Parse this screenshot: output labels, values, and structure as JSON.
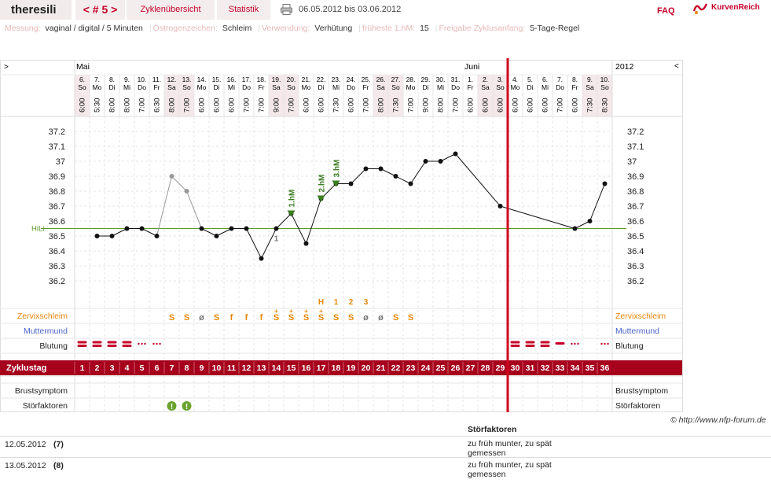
{
  "header": {
    "username": "theresili",
    "cycle_label": "< # 5 >",
    "overview_link": "Zyklenübersicht",
    "stats_link": "Statistik",
    "date_range": "06.05.2012 bis 03.06.2012",
    "faq_link": "FAQ",
    "logo_text": "KurvenReich"
  },
  "settings": [
    {
      "label": "Messung:",
      "value": "vaginal / digital / 5 Minuten"
    },
    {
      "label": "Östrogenzeichen:",
      "value": "Schleim"
    },
    {
      "label": "Verwendung:",
      "value": "Verhütung"
    },
    {
      "label": "früheste 1.hM:",
      "value": "15"
    },
    {
      "label": "Freigabe Zyklusanfang:",
      "value": "5-Tage-Regel"
    }
  ],
  "colors": {
    "accent": "#c4002a",
    "cycle_bar": "#a6001d",
    "hili": "#5a9a2a",
    "mucus": "#e8860a",
    "cervix_label": "#4a63c8",
    "weekend": "#f4e8ea",
    "marker": "#3c7d22"
  },
  "chart_data": {
    "type": "line",
    "months": [
      {
        "name": "Mai",
        "start_day": 1
      },
      {
        "name": "Juni",
        "start_day": 27
      }
    ],
    "year": "2012",
    "nav_left": ">",
    "nav_right": "<",
    "days": [
      {
        "d": "6.",
        "wd": "So",
        "t": "6:00"
      },
      {
        "d": "7.",
        "wd": "Mo",
        "t": "5:30"
      },
      {
        "d": "8.",
        "wd": "Di",
        "t": "8:00"
      },
      {
        "d": "9.",
        "wd": "Mi",
        "t": "8:00"
      },
      {
        "d": "10.",
        "wd": "Do",
        "t": "7:00"
      },
      {
        "d": "11.",
        "wd": "Fr",
        "t": "6:30"
      },
      {
        "d": "12.",
        "wd": "Sa",
        "t": "8:00"
      },
      {
        "d": "13.",
        "wd": "So",
        "t": "7:00"
      },
      {
        "d": "14.",
        "wd": "Mo",
        "t": "6:00"
      },
      {
        "d": "15.",
        "wd": "Di",
        "t": "6:00"
      },
      {
        "d": "16.",
        "wd": "Mi",
        "t": "6:00"
      },
      {
        "d": "17.",
        "wd": "Do",
        "t": "7:00"
      },
      {
        "d": "18.",
        "wd": "Fr",
        "t": "7:00"
      },
      {
        "d": "19.",
        "wd": "Sa",
        "t": "9:00"
      },
      {
        "d": "20.",
        "wd": "So",
        "t": "7:00"
      },
      {
        "d": "21.",
        "wd": "Mo",
        "t": "6:00"
      },
      {
        "d": "22.",
        "wd": "Di",
        "t": "6:00"
      },
      {
        "d": "23.",
        "wd": "Mi",
        "t": "7:30"
      },
      {
        "d": "24.",
        "wd": "Do",
        "t": "6:00"
      },
      {
        "d": "25.",
        "wd": "Fr",
        "t": "7:00"
      },
      {
        "d": "26.",
        "wd": "Sa",
        "t": "8:00"
      },
      {
        "d": "27.",
        "wd": "So",
        "t": "7:30"
      },
      {
        "d": "28.",
        "wd": "Mo",
        "t": "7:00"
      },
      {
        "d": "29.",
        "wd": "Di",
        "t": "9:00"
      },
      {
        "d": "30.",
        "wd": "Mi",
        "t": "8:00"
      },
      {
        "d": "31.",
        "wd": "Do",
        "t": "7:00"
      },
      {
        "d": "1.",
        "wd": "Fr",
        "t": "6:00"
      },
      {
        "d": "2.",
        "wd": "Sa",
        "t": "6:00"
      },
      {
        "d": "3.",
        "wd": "So",
        "t": "6:00"
      },
      {
        "d": "4.",
        "wd": "Mo",
        "t": "6:00"
      },
      {
        "d": "5.",
        "wd": "Di",
        "t": "6:00"
      },
      {
        "d": "6.",
        "wd": "Mi",
        "t": "6:00"
      },
      {
        "d": "7.",
        "wd": "Do",
        "t": "7:00"
      },
      {
        "d": "8.",
        "wd": "Fr",
        "t": "6:00"
      },
      {
        "d": "9.",
        "wd": "Sa",
        "t": "7:30"
      },
      {
        "d": "10.",
        "wd": "So",
        "t": "8:30"
      }
    ],
    "temperatures": [
      null,
      36.5,
      36.5,
      36.55,
      36.55,
      36.5,
      36.9,
      36.8,
      36.55,
      36.5,
      36.55,
      36.55,
      36.35,
      36.55,
      36.65,
      36.45,
      36.75,
      36.85,
      36.85,
      36.95,
      36.95,
      36.9,
      36.85,
      37.0,
      37.0,
      37.05,
      null,
      null,
      36.7,
      null,
      null,
      null,
      null,
      36.55,
      36.6,
      36.85
    ],
    "disturbed_days": [
      7,
      8
    ],
    "ylim": [
      36.1,
      37.3
    ],
    "y_ticks": [
      36.2,
      36.3,
      36.4,
      36.5,
      36.6,
      36.7,
      36.8,
      36.9,
      37.0,
      37.1,
      37.2
    ],
    "y_tick_labels": [
      "36.2",
      "36.3",
      "36.4",
      "36.5",
      "36.6",
      "36.7",
      "36.8",
      "36.9",
      "37",
      "37.1",
      "37.2"
    ],
    "hili": {
      "label": "HiLi",
      "value": 36.55
    },
    "cycle_end_day": 29,
    "temp_markers": [
      {
        "day": 15,
        "label": "1.hM"
      },
      {
        "day": 17,
        "label": "2.hM"
      },
      {
        "day": 18,
        "label": "3.hM"
      }
    ],
    "under_label": {
      "day": 14,
      "text": "1"
    },
    "mucus_peak_labels": [
      {
        "day": 17,
        "text": "H"
      },
      {
        "day": 18,
        "text": "1"
      },
      {
        "day": 19,
        "text": "2"
      },
      {
        "day": 20,
        "text": "3"
      }
    ],
    "mucus": [
      {
        "day": 7,
        "sym": "S"
      },
      {
        "day": 8,
        "sym": "S"
      },
      {
        "day": 9,
        "sym": "ø"
      },
      {
        "day": 10,
        "sym": "S"
      },
      {
        "day": 11,
        "sym": "f"
      },
      {
        "day": 12,
        "sym": "f"
      },
      {
        "day": 13,
        "sym": "f"
      },
      {
        "day": 14,
        "sym": "S+"
      },
      {
        "day": 15,
        "sym": "S+"
      },
      {
        "day": 16,
        "sym": "S+"
      },
      {
        "day": 17,
        "sym": "S+"
      },
      {
        "day": 18,
        "sym": "S"
      },
      {
        "day": 19,
        "sym": "S"
      },
      {
        "day": 20,
        "sym": "ø"
      },
      {
        "day": 21,
        "sym": "ø"
      },
      {
        "day": 22,
        "sym": "S"
      },
      {
        "day": 23,
        "sym": "S"
      }
    ],
    "bleeding": [
      {
        "day": 1,
        "level": "heavy"
      },
      {
        "day": 2,
        "level": "heavy"
      },
      {
        "day": 3,
        "level": "heavy"
      },
      {
        "day": 4,
        "level": "heavy"
      },
      {
        "day": 5,
        "level": "light"
      },
      {
        "day": 6,
        "level": "light"
      },
      {
        "day": 30,
        "level": "heavy"
      },
      {
        "day": 31,
        "level": "heavy"
      },
      {
        "day": 32,
        "level": "heavy"
      },
      {
        "day": 33,
        "level": "medium"
      },
      {
        "day": 34,
        "level": "light"
      },
      {
        "day": 36,
        "level": "light"
      }
    ],
    "row_labels": {
      "mucus": "Zervixschleim",
      "cervix": "Muttermund",
      "bleeding": "Blutung",
      "cycle_day": "Zyklustag",
      "breast": "Brustsymptom",
      "disturb": "Störfaktoren"
    },
    "cycle_days": [
      "1",
      "2",
      "3",
      "4",
      "5",
      "6",
      "7",
      "8",
      "9",
      "10",
      "11",
      "12",
      "13",
      "14",
      "15",
      "16",
      "17",
      "18",
      "19",
      "20",
      "21",
      "22",
      "23",
      "24",
      "25",
      "26",
      "27",
      "28",
      "29",
      "30",
      "31",
      "32",
      "33",
      "34",
      "35",
      "36"
    ]
  },
  "disturbances": {
    "heading": "Störfaktoren",
    "rows": [
      {
        "date": "12.05.2012",
        "num": "(7)",
        "text": "zu früh munter, zu spät gemessen"
      },
      {
        "date": "13.05.2012",
        "num": "(8)",
        "text": "zu früh munter, zu spät gemessen"
      }
    ]
  },
  "credit": "© http://www.nfp-forum.de"
}
